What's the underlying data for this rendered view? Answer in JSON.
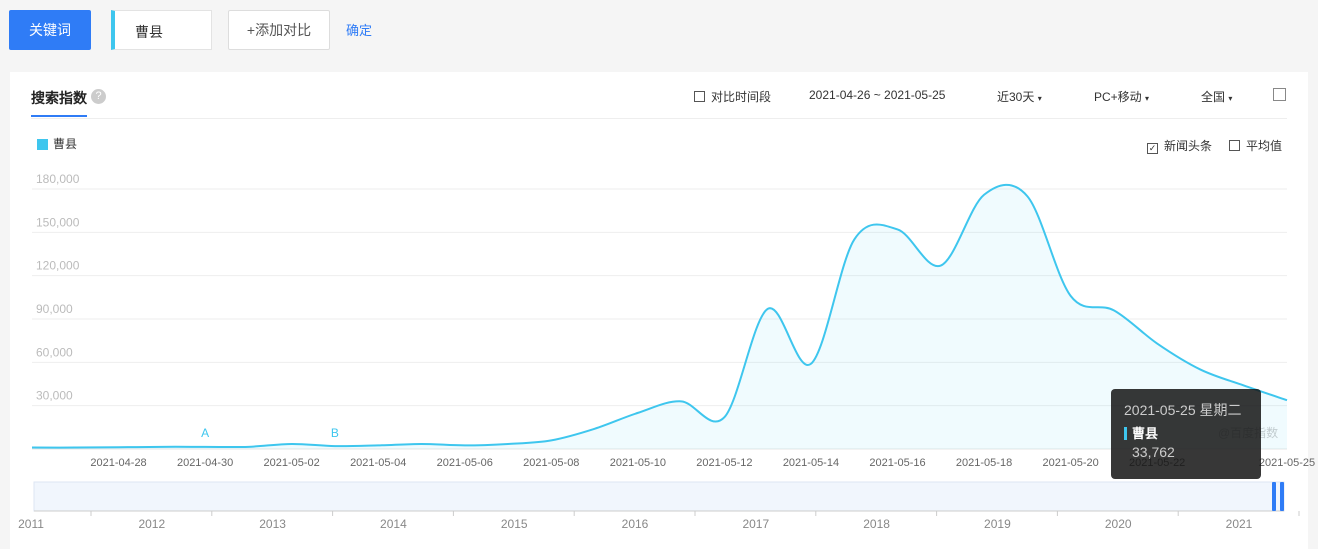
{
  "toolbar": {
    "keyword_button": "关键词",
    "keyword": "曹县",
    "add_compare": "+添加对比",
    "confirm": "确定"
  },
  "panel": {
    "tab": "搜索指数",
    "compare_period": "对比时间段",
    "date_range": "2021-04-26 ~ 2021-05-25",
    "period": "近30天",
    "device": "PC+移动",
    "region": "全国",
    "news_headlines": "新闻头条",
    "average": "平均值"
  },
  "chart_data": {
    "type": "line",
    "categories": [
      null,
      null,
      "2021-04-28",
      null,
      "2021-04-30",
      null,
      "2021-05-02",
      null,
      "2021-05-04",
      null,
      "2021-05-06",
      null,
      "2021-05-08",
      null,
      "2021-05-10",
      null,
      "2021-05-12",
      null,
      "2021-05-14",
      null,
      "2021-05-16",
      null,
      "2021-05-18",
      null,
      "2021-05-20",
      null,
      "2021-05-22",
      null,
      null,
      "2021-05-25"
    ],
    "series": [
      {
        "name": "曹县",
        "color": "#3ec6ee",
        "values": [
          1000,
          1000,
          1200,
          1500,
          1500,
          1500,
          3500,
          2000,
          2500,
          3500,
          2500,
          3500,
          6000,
          14000,
          25000,
          33000,
          22000,
          97000,
          59000,
          145000,
          152000,
          127000,
          176000,
          175000,
          106000,
          96000,
          73000,
          55000,
          44000,
          33762
        ],
        "value_labels": [
          null,
          null,
          null,
          null,
          null,
          null,
          null,
          null,
          null,
          null,
          null,
          null,
          null,
          null,
          null,
          null,
          null,
          null,
          null,
          null,
          null,
          null,
          null,
          null,
          null,
          null,
          null,
          null,
          null,
          "33,762"
        ]
      }
    ],
    "ylim": [
      0,
      180000
    ],
    "yticks": [
      {
        "value": 30000,
        "label": "30,000"
      },
      {
        "value": 60000,
        "label": "60,000"
      },
      {
        "value": 90000,
        "label": "90,000"
      },
      {
        "value": 120000,
        "label": "120,000"
      },
      {
        "value": 150000,
        "label": "150,000"
      },
      {
        "value": 180000,
        "label": "180,000"
      }
    ],
    "grid": true,
    "annotations": [
      {
        "text": "A",
        "x": "2021-04-30"
      },
      {
        "text": "B",
        "x": "2021-05-03"
      }
    ],
    "tooltip": {
      "title": "2021-05-25 星期二"
    },
    "watermark": "@百度指数"
  },
  "timeline": {
    "years": [
      "2011",
      "2012",
      "2013",
      "2014",
      "2015",
      "2016",
      "2017",
      "2018",
      "2019",
      "2020",
      "2021"
    ]
  }
}
